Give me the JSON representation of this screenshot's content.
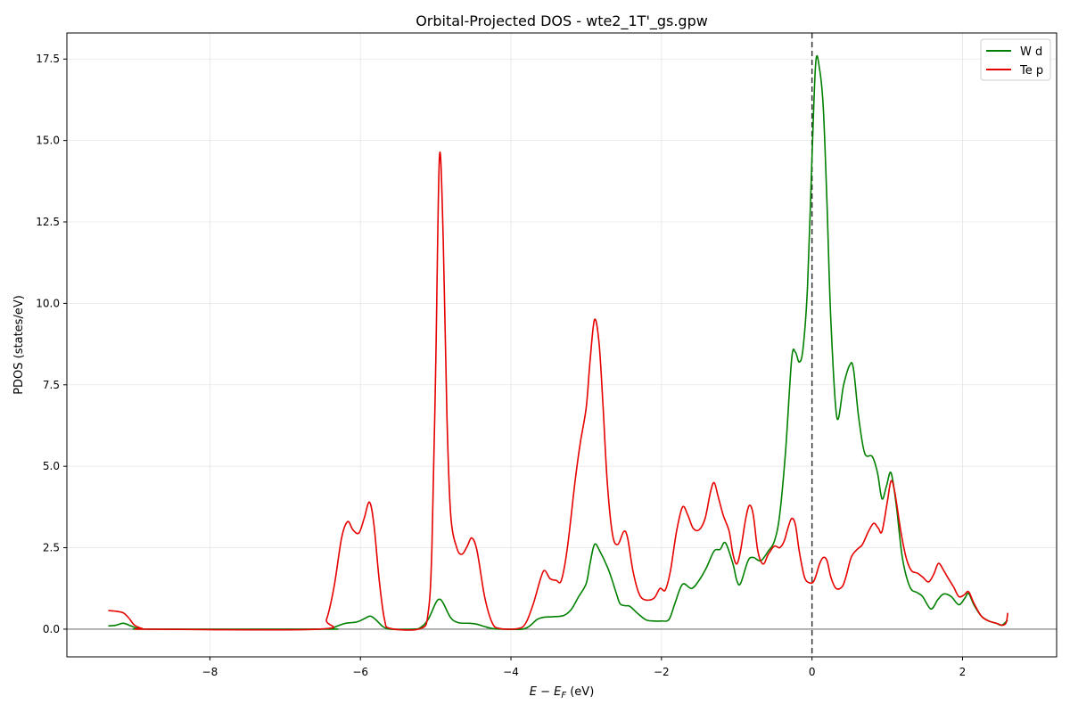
{
  "chart_data": {
    "type": "line",
    "title": "Orbital-Projected DOS - wte2_1T'_gs.gpw",
    "xlabel": "E − E_F (eV)",
    "xlabel_main": "E − E",
    "xlabel_sub": "F",
    "xlabel_unit": " (eV)",
    "ylabel": "PDOS (states/eV)",
    "xlim": [
      -9.9,
      3.25
    ],
    "ylim": [
      -0.85,
      18.3
    ],
    "xticks": [
      -8,
      -6,
      -4,
      -2,
      0,
      2
    ],
    "xtick_labels": [
      "−8",
      "−6",
      "−4",
      "−2",
      "0",
      "2"
    ],
    "yticks": [
      0,
      2.5,
      5,
      7.5,
      10,
      12.5,
      15,
      17.5
    ],
    "ytick_labels": [
      "0.0",
      "2.5",
      "5.0",
      "7.5",
      "10.0",
      "12.5",
      "15.0",
      "17.5"
    ],
    "grid": true,
    "legend_position": "top-right",
    "reference_lines": [
      {
        "type": "vertical",
        "x": 0,
        "style": "dashed",
        "color": "#333333"
      },
      {
        "type": "horizontal",
        "y": 0,
        "style": "solid",
        "color": "#999999"
      }
    ],
    "series": [
      {
        "name": "W d",
        "color": "#008000",
        "points": [
          [
            -9.35,
            0.1
          ],
          [
            -9.25,
            0.12
          ],
          [
            -9.15,
            0.18
          ],
          [
            -9.05,
            0.1
          ],
          [
            -8.95,
            0.02
          ],
          [
            -8.8,
            0.0
          ],
          [
            -6.5,
            0.0
          ],
          [
            -6.4,
            0.02
          ],
          [
            -6.3,
            0.1
          ],
          [
            -6.2,
            0.18
          ],
          [
            -6.05,
            0.22
          ],
          [
            -5.95,
            0.32
          ],
          [
            -5.87,
            0.4
          ],
          [
            -5.8,
            0.3
          ],
          [
            -5.7,
            0.08
          ],
          [
            -5.6,
            0.0
          ],
          [
            -5.3,
            0.0
          ],
          [
            -5.2,
            0.05
          ],
          [
            -5.1,
            0.3
          ],
          [
            -5.0,
            0.8
          ],
          [
            -4.95,
            0.92
          ],
          [
            -4.9,
            0.8
          ],
          [
            -4.8,
            0.35
          ],
          [
            -4.7,
            0.2
          ],
          [
            -4.55,
            0.18
          ],
          [
            -4.45,
            0.15
          ],
          [
            -4.35,
            0.08
          ],
          [
            -4.25,
            0.02
          ],
          [
            -4.1,
            0.0
          ],
          [
            -3.85,
            0.0
          ],
          [
            -3.75,
            0.1
          ],
          [
            -3.65,
            0.3
          ],
          [
            -3.55,
            0.37
          ],
          [
            -3.45,
            0.38
          ],
          [
            -3.3,
            0.42
          ],
          [
            -3.2,
            0.6
          ],
          [
            -3.1,
            1.0
          ],
          [
            -3.0,
            1.4
          ],
          [
            -2.95,
            2.0
          ],
          [
            -2.89,
            2.6
          ],
          [
            -2.82,
            2.4
          ],
          [
            -2.7,
            1.8
          ],
          [
            -2.6,
            1.1
          ],
          [
            -2.55,
            0.78
          ],
          [
            -2.48,
            0.72
          ],
          [
            -2.42,
            0.7
          ],
          [
            -2.3,
            0.45
          ],
          [
            -2.2,
            0.28
          ],
          [
            -2.1,
            0.25
          ],
          [
            -2.0,
            0.25
          ],
          [
            -1.9,
            0.3
          ],
          [
            -1.82,
            0.8
          ],
          [
            -1.72,
            1.38
          ],
          [
            -1.6,
            1.25
          ],
          [
            -1.5,
            1.5
          ],
          [
            -1.4,
            1.9
          ],
          [
            -1.3,
            2.4
          ],
          [
            -1.22,
            2.45
          ],
          [
            -1.15,
            2.65
          ],
          [
            -1.05,
            2.0
          ],
          [
            -1.0,
            1.5
          ],
          [
            -0.95,
            1.4
          ],
          [
            -0.85,
            2.1
          ],
          [
            -0.78,
            2.2
          ],
          [
            -0.68,
            2.1
          ],
          [
            -0.58,
            2.4
          ],
          [
            -0.5,
            2.7
          ],
          [
            -0.43,
            3.5
          ],
          [
            -0.35,
            5.5
          ],
          [
            -0.27,
            8.3
          ],
          [
            -0.22,
            8.5
          ],
          [
            -0.17,
            8.2
          ],
          [
            -0.12,
            8.6
          ],
          [
            -0.06,
            10.5
          ],
          [
            0.0,
            14.5
          ],
          [
            0.05,
            17.4
          ],
          [
            0.1,
            17.2
          ],
          [
            0.15,
            16.0
          ],
          [
            0.2,
            13.0
          ],
          [
            0.25,
            9.5
          ],
          [
            0.33,
            6.5
          ],
          [
            0.42,
            7.5
          ],
          [
            0.5,
            8.1
          ],
          [
            0.55,
            8.0
          ],
          [
            0.62,
            6.5
          ],
          [
            0.7,
            5.4
          ],
          [
            0.8,
            5.3
          ],
          [
            0.87,
            4.8
          ],
          [
            0.93,
            4.0
          ],
          [
            0.99,
            4.4
          ],
          [
            1.05,
            4.8
          ],
          [
            1.12,
            3.8
          ],
          [
            1.2,
            2.2
          ],
          [
            1.3,
            1.3
          ],
          [
            1.4,
            1.12
          ],
          [
            1.47,
            1.0
          ],
          [
            1.58,
            0.62
          ],
          [
            1.67,
            0.9
          ],
          [
            1.75,
            1.08
          ],
          [
            1.85,
            1.0
          ],
          [
            1.95,
            0.75
          ],
          [
            2.03,
            0.95
          ],
          [
            2.08,
            1.1
          ],
          [
            2.15,
            0.75
          ],
          [
            2.25,
            0.4
          ],
          [
            2.35,
            0.25
          ],
          [
            2.45,
            0.18
          ],
          [
            2.52,
            0.12
          ],
          [
            2.6,
            0.28
          ]
        ]
      },
      {
        "name": "Te p",
        "color": "#e60000",
        "points": [
          [
            -9.35,
            0.57
          ],
          [
            -9.25,
            0.55
          ],
          [
            -9.15,
            0.5
          ],
          [
            -9.08,
            0.35
          ],
          [
            -9.0,
            0.12
          ],
          [
            -8.9,
            0.02
          ],
          [
            -8.8,
            0.0
          ],
          [
            -6.55,
            0.0
          ],
          [
            -6.45,
            0.3
          ],
          [
            -6.35,
            1.3
          ],
          [
            -6.25,
            2.8
          ],
          [
            -6.17,
            3.3
          ],
          [
            -6.1,
            3.05
          ],
          [
            -6.02,
            2.95
          ],
          [
            -5.95,
            3.4
          ],
          [
            -5.88,
            3.9
          ],
          [
            -5.82,
            3.2
          ],
          [
            -5.75,
            1.5
          ],
          [
            -5.68,
            0.3
          ],
          [
            -5.6,
            0.02
          ],
          [
            -5.2,
            0.02
          ],
          [
            -5.1,
            0.5
          ],
          [
            -5.05,
            2.5
          ],
          [
            -5.0,
            8.0
          ],
          [
            -4.95,
            14.5
          ],
          [
            -4.9,
            12.0
          ],
          [
            -4.85,
            6.5
          ],
          [
            -4.8,
            3.5
          ],
          [
            -4.72,
            2.5
          ],
          [
            -4.65,
            2.3
          ],
          [
            -4.58,
            2.55
          ],
          [
            -4.52,
            2.8
          ],
          [
            -4.45,
            2.4
          ],
          [
            -4.35,
            1.0
          ],
          [
            -4.25,
            0.2
          ],
          [
            -4.15,
            0.02
          ],
          [
            -3.9,
            0.02
          ],
          [
            -3.8,
            0.2
          ],
          [
            -3.7,
            0.8
          ],
          [
            -3.6,
            1.6
          ],
          [
            -3.55,
            1.8
          ],
          [
            -3.48,
            1.55
          ],
          [
            -3.4,
            1.5
          ],
          [
            -3.33,
            1.5
          ],
          [
            -3.25,
            2.5
          ],
          [
            -3.15,
            4.5
          ],
          [
            -3.08,
            5.7
          ],
          [
            -3.0,
            6.8
          ],
          [
            -2.95,
            8.2
          ],
          [
            -2.89,
            9.5
          ],
          [
            -2.83,
            8.8
          ],
          [
            -2.78,
            7.0
          ],
          [
            -2.72,
            4.5
          ],
          [
            -2.65,
            2.9
          ],
          [
            -2.58,
            2.6
          ],
          [
            -2.5,
            3.0
          ],
          [
            -2.45,
            2.8
          ],
          [
            -2.38,
            1.8
          ],
          [
            -2.3,
            1.1
          ],
          [
            -2.22,
            0.9
          ],
          [
            -2.1,
            0.95
          ],
          [
            -2.02,
            1.25
          ],
          [
            -1.95,
            1.2
          ],
          [
            -1.88,
            1.8
          ],
          [
            -1.8,
            3.0
          ],
          [
            -1.72,
            3.75
          ],
          [
            -1.65,
            3.5
          ],
          [
            -1.58,
            3.1
          ],
          [
            -1.5,
            3.05
          ],
          [
            -1.42,
            3.4
          ],
          [
            -1.35,
            4.2
          ],
          [
            -1.3,
            4.5
          ],
          [
            -1.25,
            4.1
          ],
          [
            -1.18,
            3.5
          ],
          [
            -1.1,
            3.0
          ],
          [
            -1.05,
            2.3
          ],
          [
            -1.0,
            2.0
          ],
          [
            -0.95,
            2.4
          ],
          [
            -0.88,
            3.4
          ],
          [
            -0.83,
            3.8
          ],
          [
            -0.78,
            3.5
          ],
          [
            -0.72,
            2.4
          ],
          [
            -0.65,
            2.0
          ],
          [
            -0.58,
            2.3
          ],
          [
            -0.5,
            2.55
          ],
          [
            -0.43,
            2.5
          ],
          [
            -0.37,
            2.7
          ],
          [
            -0.32,
            3.1
          ],
          [
            -0.27,
            3.4
          ],
          [
            -0.22,
            3.2
          ],
          [
            -0.17,
            2.4
          ],
          [
            -0.1,
            1.6
          ],
          [
            -0.03,
            1.42
          ],
          [
            0.03,
            1.5
          ],
          [
            0.1,
            2.0
          ],
          [
            0.15,
            2.2
          ],
          [
            0.2,
            2.1
          ],
          [
            0.25,
            1.6
          ],
          [
            0.32,
            1.25
          ],
          [
            0.4,
            1.3
          ],
          [
            0.45,
            1.6
          ],
          [
            0.52,
            2.2
          ],
          [
            0.6,
            2.45
          ],
          [
            0.67,
            2.6
          ],
          [
            0.75,
            3.0
          ],
          [
            0.82,
            3.25
          ],
          [
            0.88,
            3.1
          ],
          [
            0.93,
            3.0
          ],
          [
            1.0,
            3.9
          ],
          [
            1.05,
            4.55
          ],
          [
            1.1,
            4.2
          ],
          [
            1.18,
            3.0
          ],
          [
            1.25,
            2.2
          ],
          [
            1.32,
            1.8
          ],
          [
            1.4,
            1.72
          ],
          [
            1.47,
            1.6
          ],
          [
            1.55,
            1.45
          ],
          [
            1.62,
            1.7
          ],
          [
            1.68,
            2.02
          ],
          [
            1.75,
            1.8
          ],
          [
            1.8,
            1.6
          ],
          [
            1.88,
            1.3
          ],
          [
            1.95,
            1.0
          ],
          [
            2.02,
            1.05
          ],
          [
            2.08,
            1.15
          ],
          [
            2.15,
            0.8
          ],
          [
            2.25,
            0.4
          ],
          [
            2.35,
            0.25
          ],
          [
            2.45,
            0.18
          ],
          [
            2.53,
            0.12
          ],
          [
            2.58,
            0.2
          ],
          [
            2.6,
            0.5
          ]
        ]
      }
    ]
  }
}
